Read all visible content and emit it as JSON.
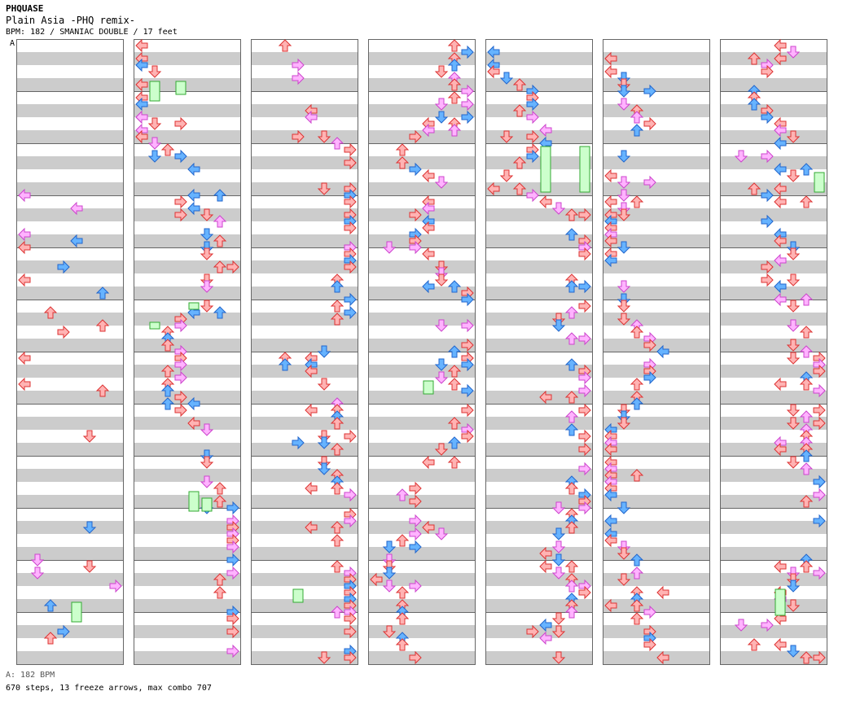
{
  "header": {
    "artist": "PHQUASE",
    "title": "Plain Asia -PHQ remix-",
    "meta": "BPM: 182 / SMANIAC DOUBLE / 17 feet"
  },
  "bpm_marker": "A",
  "footer": {
    "bpm_line": "A: 182 BPM",
    "stats": "670 steps, 13 freeze arrows, max combo 707"
  },
  "colors": {
    "stripe_gray": "#cccccc",
    "measure_line": "#666666",
    "arrow_red": "#ffb3b3",
    "arrow_red_edge": "#dd3333",
    "arrow_blue": "#66b3ff",
    "arrow_blue_edge": "#2266cc",
    "arrow_pink": "#ffb3ff",
    "arrow_pink_edge": "#cc44cc",
    "freeze_fill": "#ccffcc",
    "freeze_edge": "#33aa33"
  },
  "chart_data": {
    "type": "step-chart",
    "columns": 7,
    "measures_per_column": 12,
    "lanes": 8
  }
}
